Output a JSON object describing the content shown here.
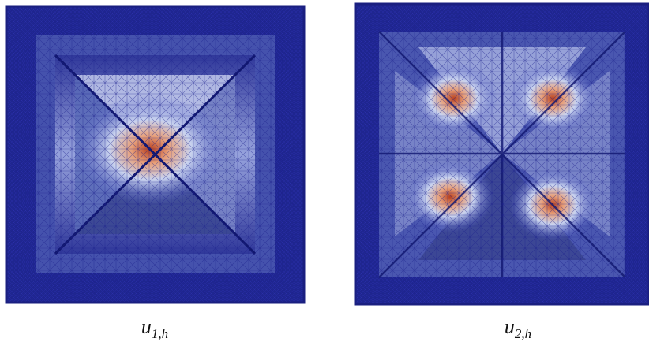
{
  "figures": [
    {
      "caption": {
        "symbol": "u",
        "subscript": "1,h"
      }
    },
    {
      "caption": {
        "symbol": "u",
        "subscript": "2,h"
      }
    }
  ]
}
